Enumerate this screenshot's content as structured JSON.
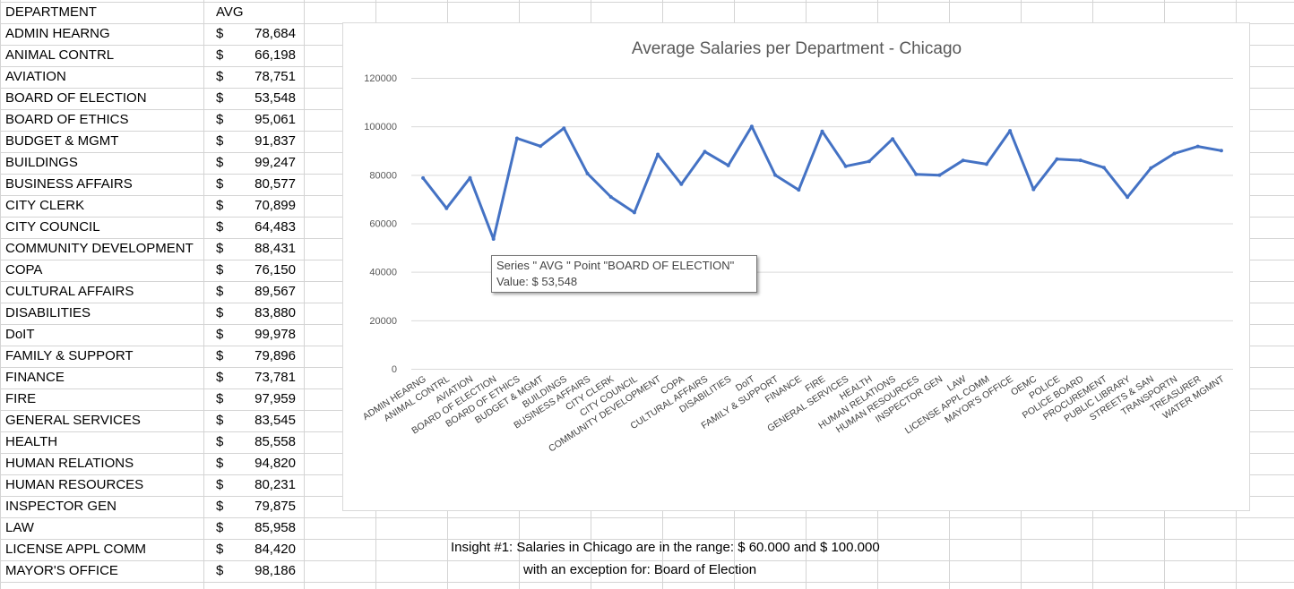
{
  "sheet": {
    "header_dept": "DEPARTMENT",
    "header_avg": "AVG",
    "currency_symbol": "$",
    "rows": [
      {
        "dept": "ADMIN HEARNG",
        "avg": "78,684"
      },
      {
        "dept": "ANIMAL CONTRL",
        "avg": "66,198"
      },
      {
        "dept": "AVIATION",
        "avg": "78,751"
      },
      {
        "dept": "BOARD OF ELECTION",
        "avg": "53,548"
      },
      {
        "dept": "BOARD OF ETHICS",
        "avg": "95,061"
      },
      {
        "dept": "BUDGET & MGMT",
        "avg": "91,837"
      },
      {
        "dept": "BUILDINGS",
        "avg": "99,247"
      },
      {
        "dept": "BUSINESS AFFAIRS",
        "avg": "80,577"
      },
      {
        "dept": "CITY CLERK",
        "avg": "70,899"
      },
      {
        "dept": "CITY COUNCIL",
        "avg": "64,483"
      },
      {
        "dept": "COMMUNITY DEVELOPMENT",
        "avg": "88,431"
      },
      {
        "dept": "COPA",
        "avg": "76,150"
      },
      {
        "dept": "CULTURAL AFFAIRS",
        "avg": "89,567"
      },
      {
        "dept": "DISABILITIES",
        "avg": "83,880"
      },
      {
        "dept": "DoIT",
        "avg": "99,978"
      },
      {
        "dept": "FAMILY & SUPPORT",
        "avg": "79,896"
      },
      {
        "dept": "FINANCE",
        "avg": "73,781"
      },
      {
        "dept": "FIRE",
        "avg": "97,959"
      },
      {
        "dept": "GENERAL SERVICES",
        "avg": "83,545"
      },
      {
        "dept": "HEALTH",
        "avg": "85,558"
      },
      {
        "dept": "HUMAN RELATIONS",
        "avg": "94,820"
      },
      {
        "dept": "HUMAN RESOURCES",
        "avg": "80,231"
      },
      {
        "dept": "INSPECTOR GEN",
        "avg": "79,875"
      },
      {
        "dept": "LAW",
        "avg": "85,958"
      },
      {
        "dept": "LICENSE APPL COMM",
        "avg": "84,420"
      },
      {
        "dept": "MAYOR'S OFFICE",
        "avg": "98,186"
      }
    ]
  },
  "chart_data": {
    "type": "line",
    "title": "Average Salaries per Department - Chicago",
    "xlabel": "",
    "ylabel": "",
    "ylim": [
      0,
      120000
    ],
    "yticks": [
      "0",
      "20000",
      "40000",
      "60000",
      "80000",
      "100000",
      "120000"
    ],
    "grid": true,
    "legend": "none",
    "line_color": "#4472c4",
    "categories": [
      "ADMIN HEARNG",
      "ANIMAL CONTRL",
      "AVIATION",
      "BOARD OF ELECTION",
      "BOARD OF ETHICS",
      "BUDGET & MGMT",
      "BUILDINGS",
      "BUSINESS AFFAIRS",
      "CITY CLERK",
      "CITY COUNCIL",
      "COMMUNITY DEVELOPMENT",
      "COPA",
      "CULTURAL AFFAIRS",
      "DISABILITIES",
      "DoIT",
      "FAMILY & SUPPORT",
      "FINANCE",
      "FIRE",
      "GENERAL SERVICES",
      "HEALTH",
      "HUMAN RELATIONS",
      "HUMAN RESOURCES",
      "INSPECTOR GEN",
      "LAW",
      "LICENSE APPL COMM",
      "MAYOR'S OFFICE",
      "OEMC",
      "POLICE",
      "POLICE BOARD",
      "PROCUREMENT",
      "PUBLIC LIBRARY",
      "STREETS & SAN",
      "TRANSPORTN",
      "TREASURER",
      "WATER MGMNT"
    ],
    "series": [
      {
        "values": [
          78684,
          66198,
          78751,
          53548,
          95061,
          91837,
          99247,
          80577,
          70899,
          64483,
          88431,
          76150,
          89567,
          83880,
          99978,
          79896,
          73781,
          97959,
          83545,
          85558,
          94820,
          80231,
          79875,
          85958,
          84420,
          98186,
          74000,
          86500,
          86000,
          83000,
          70800,
          82800,
          88800,
          91700,
          90000
        ]
      }
    ]
  },
  "tooltip": {
    "line1": "Series \" AVG \" Point \"BOARD OF ELECTION\"",
    "line2": "Value:  $ 53,548"
  },
  "insight": {
    "line1": "Insight #1: Salaries in Chicago are in the range: $ 60.000 and $ 100.000",
    "line2": "with an exception for: Board of Election"
  }
}
